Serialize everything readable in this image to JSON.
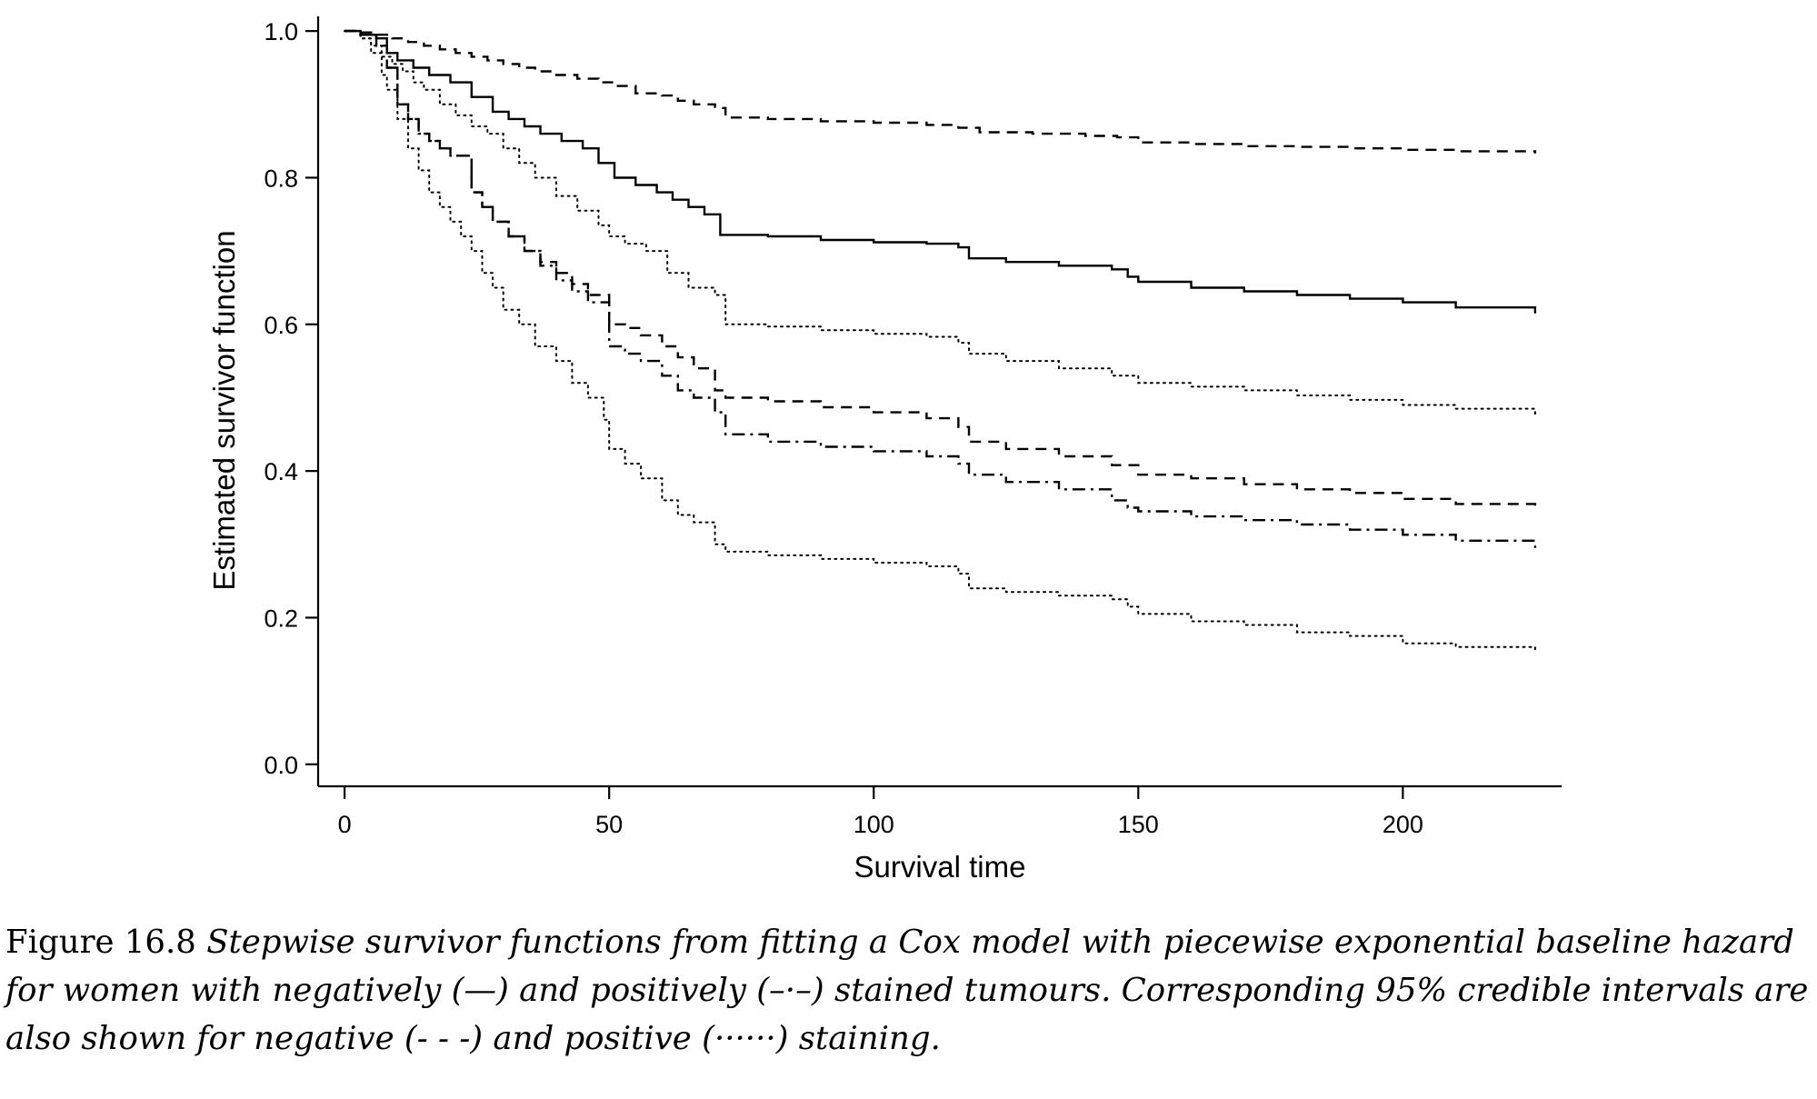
{
  "chart_data": {
    "type": "line",
    "title": "",
    "xlabel": "Survival time",
    "ylabel": "Estimated survivor function",
    "xlim": [
      -5,
      230
    ],
    "ylim": [
      -0.03,
      1.02
    ],
    "x_ticks": [
      0,
      50,
      100,
      150,
      200
    ],
    "y_ticks": [
      0.0,
      0.2,
      0.4,
      0.6,
      0.8,
      1.0
    ],
    "x_tick_labels": [
      "0",
      "50",
      "100",
      "150",
      "200"
    ],
    "y_tick_labels": [
      "0.0",
      "0.2",
      "0.4",
      "0.6",
      "0.8",
      "1.0"
    ],
    "grid": false,
    "legend": "none (described in caption)",
    "series": [
      {
        "style": "dashed",
        "step": true,
        "x": [
          0,
          3,
          6,
          9,
          12,
          15,
          18,
          21,
          24,
          27,
          30,
          33,
          36,
          40,
          44,
          48,
          51,
          55,
          60,
          63,
          66,
          70,
          72,
          80,
          90,
          100,
          110,
          116,
          120,
          130,
          140,
          146,
          150,
          160,
          170,
          180,
          190,
          200,
          210,
          225
        ],
        "y": [
          1.0,
          0.998,
          0.995,
          0.99,
          0.985,
          0.98,
          0.975,
          0.97,
          0.965,
          0.96,
          0.955,
          0.95,
          0.945,
          0.94,
          0.935,
          0.93,
          0.925,
          0.915,
          0.912,
          0.905,
          0.9,
          0.895,
          0.882,
          0.88,
          0.877,
          0.875,
          0.872,
          0.868,
          0.862,
          0.86,
          0.857,
          0.855,
          0.848,
          0.846,
          0.843,
          0.842,
          0.84,
          0.838,
          0.836,
          0.833
        ]
      },
      {
        "style": "solid",
        "step": true,
        "x": [
          0,
          3,
          6,
          8,
          10,
          13,
          16,
          20,
          24,
          28,
          31,
          34,
          37,
          41,
          45,
          48,
          51,
          55,
          59,
          62,
          65,
          68,
          71,
          80,
          90,
          100,
          110,
          116,
          118,
          125,
          135,
          145,
          148,
          150,
          160,
          170,
          180,
          190,
          200,
          210,
          225
        ],
        "y": [
          1.0,
          0.995,
          0.99,
          0.97,
          0.96,
          0.95,
          0.94,
          0.93,
          0.91,
          0.89,
          0.88,
          0.87,
          0.86,
          0.85,
          0.84,
          0.82,
          0.8,
          0.79,
          0.78,
          0.77,
          0.76,
          0.75,
          0.722,
          0.72,
          0.715,
          0.712,
          0.71,
          0.705,
          0.69,
          0.685,
          0.68,
          0.675,
          0.665,
          0.658,
          0.65,
          0.645,
          0.64,
          0.635,
          0.63,
          0.623,
          0.615
        ]
      },
      {
        "style": "dotted",
        "step": true,
        "x": [
          0,
          3,
          5,
          7,
          9,
          11,
          13,
          15,
          18,
          21,
          24,
          27,
          30,
          33,
          36,
          40,
          44,
          48,
          50,
          53,
          57,
          61,
          65,
          70,
          72,
          80,
          90,
          100,
          110,
          116,
          118,
          125,
          135,
          145,
          150,
          160,
          170,
          180,
          190,
          200,
          210,
          225
        ],
        "y": [
          1.0,
          0.99,
          0.98,
          0.965,
          0.955,
          0.945,
          0.93,
          0.92,
          0.9,
          0.885,
          0.87,
          0.86,
          0.84,
          0.82,
          0.8,
          0.775,
          0.755,
          0.735,
          0.72,
          0.71,
          0.7,
          0.67,
          0.65,
          0.64,
          0.6,
          0.597,
          0.592,
          0.587,
          0.583,
          0.575,
          0.56,
          0.55,
          0.54,
          0.53,
          0.52,
          0.515,
          0.51,
          0.503,
          0.497,
          0.49,
          0.485,
          0.478
        ]
      },
      {
        "style": "dashed",
        "step": true,
        "x": [
          0,
          3,
          6,
          8,
          10,
          12,
          14,
          16,
          18,
          20,
          24,
          26,
          28,
          31,
          34,
          37,
          40,
          43,
          46,
          50,
          53,
          56,
          60,
          63,
          66,
          70,
          72,
          80,
          90,
          100,
          110,
          116,
          118,
          125,
          135,
          145,
          150,
          160,
          170,
          180,
          190,
          200,
          210,
          225
        ],
        "y": [
          1.0,
          0.995,
          0.98,
          0.95,
          0.9,
          0.88,
          0.86,
          0.85,
          0.84,
          0.83,
          0.78,
          0.76,
          0.74,
          0.72,
          0.7,
          0.685,
          0.67,
          0.655,
          0.64,
          0.6,
          0.595,
          0.585,
          0.57,
          0.555,
          0.54,
          0.51,
          0.5,
          0.495,
          0.487,
          0.48,
          0.472,
          0.46,
          0.44,
          0.43,
          0.42,
          0.408,
          0.395,
          0.39,
          0.382,
          0.375,
          0.37,
          0.362,
          0.355,
          0.349
        ]
      },
      {
        "style": "dashdot",
        "step": true,
        "x": [
          0,
          3,
          6,
          8,
          10,
          12,
          14,
          16,
          18,
          20,
          24,
          26,
          28,
          31,
          34,
          37,
          40,
          43,
          46,
          50,
          53,
          56,
          60,
          63,
          66,
          70,
          72,
          80,
          90,
          100,
          110,
          116,
          118,
          125,
          135,
          145,
          148,
          150,
          160,
          170,
          180,
          190,
          200,
          210,
          225
        ],
        "y": [
          1.0,
          0.995,
          0.98,
          0.95,
          0.9,
          0.88,
          0.86,
          0.85,
          0.84,
          0.83,
          0.78,
          0.76,
          0.74,
          0.72,
          0.7,
          0.68,
          0.66,
          0.645,
          0.63,
          0.57,
          0.56,
          0.55,
          0.53,
          0.51,
          0.5,
          0.48,
          0.45,
          0.44,
          0.433,
          0.427,
          0.42,
          0.41,
          0.395,
          0.385,
          0.375,
          0.36,
          0.35,
          0.345,
          0.338,
          0.333,
          0.327,
          0.32,
          0.313,
          0.305,
          0.295
        ]
      },
      {
        "style": "dotted",
        "step": true,
        "x": [
          0,
          3,
          5,
          7,
          8,
          10,
          12,
          14,
          16,
          18,
          20,
          22,
          24,
          26,
          28,
          30,
          33,
          36,
          40,
          43,
          46,
          49,
          50,
          53,
          56,
          60,
          63,
          66,
          70,
          72,
          80,
          90,
          100,
          110,
          116,
          118,
          125,
          135,
          145,
          148,
          150,
          160,
          170,
          180,
          190,
          200,
          210,
          225
        ],
        "y": [
          1.0,
          0.99,
          0.97,
          0.94,
          0.92,
          0.88,
          0.84,
          0.81,
          0.78,
          0.76,
          0.74,
          0.72,
          0.7,
          0.67,
          0.65,
          0.62,
          0.6,
          0.57,
          0.55,
          0.52,
          0.5,
          0.47,
          0.43,
          0.41,
          0.39,
          0.36,
          0.34,
          0.33,
          0.3,
          0.29,
          0.285,
          0.28,
          0.275,
          0.27,
          0.26,
          0.24,
          0.235,
          0.23,
          0.225,
          0.215,
          0.205,
          0.195,
          0.19,
          0.18,
          0.175,
          0.165,
          0.16,
          0.155
        ]
      }
    ]
  },
  "caption": {
    "figure_number": "Figure 16.8",
    "text": "Stepwise survivor functions from fitting a Cox model with piecewise exponential baseline hazard for women with negatively (—) and positively (–·–) stained tumours. Corresponding 95% credible intervals are also shown for negative (- - -) and positive (······) staining."
  }
}
